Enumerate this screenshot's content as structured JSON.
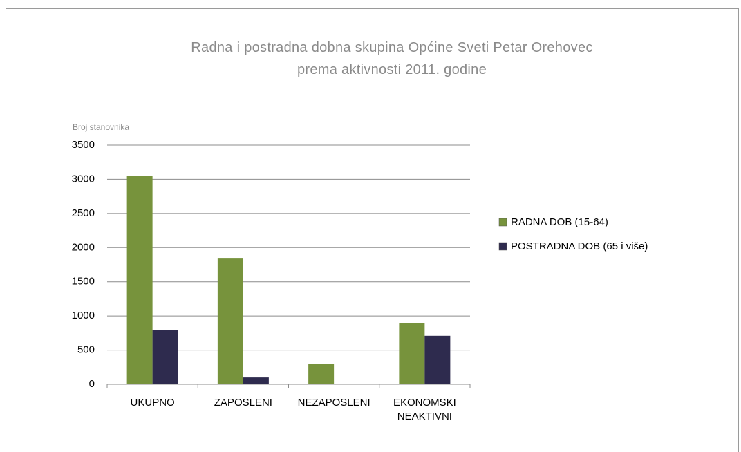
{
  "chart_data": {
    "type": "bar",
    "title": "Radna i postradna dobna skupina Općine Sveti Petar Orehovec\nprema aktivnosti 2011. godine",
    "y_label": "Broj stanovnika",
    "categories": [
      "UKUPNO",
      "ZAPOSLENI",
      "NEZAPOSLENI",
      "EKONOMSKI NEAKTIVNI"
    ],
    "series": [
      {
        "name": "RADNA DOB (15-64)",
        "color": "#77933c",
        "values": [
          3050,
          1840,
          300,
          900
        ]
      },
      {
        "name": "POSTRADNA DOB (65 i više)",
        "color": "#2e2b4e",
        "values": [
          790,
          100,
          0,
          710
        ]
      }
    ],
    "ylim": [
      0,
      3500
    ],
    "yticks": [
      0,
      500,
      1000,
      1500,
      2000,
      2500,
      3000,
      3500
    ],
    "grid": true,
    "legend": "right"
  }
}
